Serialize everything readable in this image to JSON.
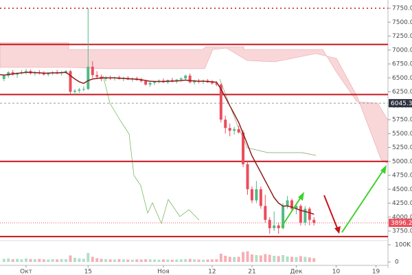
{
  "chart_data": {
    "type": "candlestick",
    "categories": [
      null,
      null,
      null,
      null,
      null,
      null,
      "Окт",
      null,
      null,
      null,
      null,
      null,
      null,
      null,
      null,
      null,
      null,
      null,
      null,
      null,
      "15",
      null,
      null,
      null,
      null,
      null,
      null,
      null,
      null,
      null,
      null,
      null,
      null,
      null,
      null,
      null,
      null,
      "Ноя",
      null,
      null,
      null,
      null,
      null,
      null,
      null,
      null,
      null,
      null,
      "12",
      null,
      null,
      null,
      null,
      null,
      null,
      null,
      null,
      "21",
      null,
      null,
      null,
      null,
      null,
      null,
      null,
      null,
      null,
      "Дек",
      null,
      null,
      null,
      null,
      null,
      null,
      null,
      null,
      "10",
      null,
      null,
      null,
      null,
      null,
      null,
      null,
      null,
      "19",
      null,
      null,
      null
    ],
    "ohlc": [
      [
        6580,
        6620,
        6450,
        6480
      ],
      [
        6480,
        6560,
        6440,
        6540
      ],
      [
        6540,
        6620,
        6500,
        6600
      ],
      [
        6600,
        6640,
        6540,
        6560
      ],
      [
        6560,
        6600,
        6500,
        6590
      ],
      [
        6590,
        6640,
        6560,
        6600
      ],
      [
        6600,
        6660,
        6560,
        6620
      ],
      [
        6620,
        6650,
        6560,
        6580
      ],
      [
        6580,
        6620,
        6540,
        6600
      ],
      [
        6600,
        6640,
        6560,
        6590
      ],
      [
        6590,
        6620,
        6540,
        6560
      ],
      [
        6560,
        6600,
        6530,
        6580
      ],
      [
        6580,
        6620,
        6550,
        6600
      ],
      [
        6600,
        6640,
        6560,
        6580
      ],
      [
        6580,
        6620,
        6540,
        6600
      ],
      [
        6600,
        6640,
        6570,
        6620
      ],
      [
        6620,
        6640,
        6200,
        6250
      ],
      [
        6250,
        6300,
        6200,
        6270
      ],
      [
        6270,
        6320,
        6230,
        6290
      ],
      [
        6290,
        6350,
        6260,
        6300
      ],
      [
        6300,
        7750,
        6280,
        6700
      ],
      [
        6700,
        6800,
        6500,
        6550
      ],
      [
        6550,
        6620,
        6480,
        6520
      ],
      [
        6520,
        6560,
        6440,
        6480
      ],
      [
        6480,
        6530,
        6440,
        6500
      ],
      [
        6500,
        6540,
        6460,
        6490
      ],
      [
        6490,
        6520,
        6450,
        6510
      ],
      [
        6510,
        6540,
        6470,
        6480
      ],
      [
        6480,
        6520,
        6440,
        6500
      ],
      [
        6500,
        6530,
        6460,
        6470
      ],
      [
        6470,
        6510,
        6430,
        6490
      ],
      [
        6490,
        6520,
        6450,
        6460
      ],
      [
        6460,
        6500,
        6420,
        6440
      ],
      [
        6440,
        6470,
        6360,
        6380
      ],
      [
        6380,
        6430,
        6340,
        6410
      ],
      [
        6410,
        6450,
        6370,
        6430
      ],
      [
        6430,
        6470,
        6400,
        6450
      ],
      [
        6450,
        6490,
        6410,
        6420
      ],
      [
        6420,
        6470,
        6390,
        6460
      ],
      [
        6460,
        6500,
        6420,
        6440
      ],
      [
        6440,
        6480,
        6400,
        6470
      ],
      [
        6470,
        6510,
        6430,
        6490
      ],
      [
        6490,
        6560,
        6460,
        6540
      ],
      [
        6540,
        6580,
        6400,
        6420
      ],
      [
        6420,
        6470,
        6380,
        6440
      ],
      [
        6440,
        6480,
        6400,
        6430
      ],
      [
        6430,
        6470,
        6390,
        6450
      ],
      [
        6450,
        6480,
        6410,
        6420
      ],
      [
        6420,
        6460,
        6380,
        6400
      ],
      [
        6400,
        6440,
        6350,
        6380
      ],
      [
        6380,
        6400,
        5700,
        5750
      ],
      [
        5750,
        5820,
        5500,
        5600
      ],
      [
        5600,
        5680,
        5450,
        5550
      ],
      [
        5550,
        5620,
        5480,
        5580
      ],
      [
        5580,
        5640,
        5500,
        5520
      ],
      [
        5520,
        5560,
        4900,
        4950
      ],
      [
        4950,
        5000,
        4400,
        4500
      ],
      [
        4500,
        4550,
        4250,
        4300
      ],
      [
        4300,
        4650,
        4250,
        4500
      ],
      [
        4500,
        4550,
        4150,
        4200
      ],
      [
        4200,
        4400,
        3900,
        3950
      ],
      [
        3950,
        4000,
        3700,
        3800
      ],
      [
        3800,
        4100,
        3750,
        3850
      ],
      [
        3850,
        3900,
        3700,
        3800
      ],
      [
        3800,
        4250,
        3780,
        4200
      ],
      [
        4200,
        4380,
        4150,
        4300
      ],
      [
        4300,
        4330,
        4100,
        4150
      ],
      [
        4150,
        4250,
        4050,
        4200
      ],
      [
        4200,
        4230,
        3850,
        3900
      ],
      [
        3900,
        4200,
        3850,
        4150
      ],
      [
        4150,
        4180,
        3850,
        3950
      ],
      [
        3950,
        4000,
        3850,
        3896.2
      ],
      null,
      null,
      null,
      null,
      null,
      null,
      null,
      null,
      null,
      null,
      null,
      null,
      null,
      null,
      null,
      null,
      null
    ],
    "ma": [
      6560,
      6550,
      6560,
      6570,
      6580,
      6590,
      6600,
      6600,
      6595,
      6590,
      6585,
      6585,
      6590,
      6590,
      6595,
      6600,
      6540,
      6480,
      6430,
      6400,
      6450,
      6480,
      6490,
      6500,
      6500,
      6500,
      6500,
      6495,
      6490,
      6485,
      6480,
      6475,
      6470,
      6450,
      6440,
      6435,
      6435,
      6435,
      6440,
      6440,
      6445,
      6450,
      6460,
      6450,
      6445,
      6440,
      6440,
      6435,
      6430,
      6420,
      6300,
      6150,
      6000,
      5850,
      5700,
      5500,
      5300,
      5100,
      4950,
      4800,
      4650,
      4500,
      4350,
      4250,
      4200,
      4200,
      4180,
      4150,
      4120,
      4100,
      4080,
      4050,
      null,
      null,
      null,
      null,
      null,
      null,
      null,
      null,
      null,
      null,
      null,
      null,
      null,
      null,
      null,
      null,
      null
    ],
    "volume": [
      22000,
      18000,
      20000,
      16000,
      18000,
      15000,
      20000,
      17000,
      16000,
      18000,
      15000,
      14000,
      16000,
      15000,
      17000,
      16000,
      38000,
      24000,
      20000,
      18000,
      52000,
      30000,
      22000,
      18000,
      16000,
      15000,
      14000,
      16000,
      15000,
      14000,
      13000,
      15000,
      14000,
      16000,
      15000,
      14000,
      13000,
      15000,
      14000,
      13000,
      14000,
      15000,
      16000,
      18000,
      15000,
      14000,
      13000,
      14000,
      15000,
      16000,
      48000,
      36000,
      30000,
      28000,
      30000,
      58000,
      62000,
      44000,
      40000,
      38000,
      46000,
      42000,
      36000,
      34000,
      40000,
      32000,
      30000,
      28000,
      34000,
      30000,
      26000,
      22000,
      null,
      null,
      null,
      null,
      null,
      null,
      null,
      null,
      null,
      null,
      null,
      null,
      null,
      null,
      null,
      null,
      null
    ],
    "up_color": "#53b987",
    "down_color": "#eb4d5c",
    "ma_color": "#8e1b1b",
    "ylim": [
      3750,
      7750
    ],
    "yticks": [
      {
        "value": 7750,
        "label": "7750.00"
      },
      {
        "value": 7500,
        "label": "7500.00"
      },
      {
        "value": 7250,
        "label": "7250.00"
      },
      {
        "value": 7000,
        "label": "7000.00"
      },
      {
        "value": 6750,
        "label": "6750.00"
      },
      {
        "value": 6500,
        "label": "6500.00"
      },
      {
        "value": 6250,
        "label": "6250.00"
      },
      {
        "value": 6000,
        "label": "6000.00"
      },
      {
        "value": 5750,
        "label": "5750.00"
      },
      {
        "value": 5500,
        "label": "5500.00"
      },
      {
        "value": 5250,
        "label": "5250.00"
      },
      {
        "value": 5000,
        "label": "5000.00"
      },
      {
        "value": 4750,
        "label": "4750.00"
      },
      {
        "value": 4500,
        "label": "4500.00"
      },
      {
        "value": 4250,
        "label": "4250.00"
      },
      {
        "value": 4000,
        "label": "4000.00"
      },
      {
        "value": 3750,
        "label": "3750.00"
      }
    ],
    "volume_lim": [
      0,
      100000
    ],
    "volume_ticks": [
      {
        "value": 100000,
        "label": "100K"
      },
      0
    ],
    "levels": [
      7750,
      7100,
      6200,
      5000,
      3650
    ],
    "level_color": "#c3141c",
    "price_markers": [
      6045.3,
      3896.2
    ],
    "price_marker_colors": [
      "#2f3342",
      "#eb4d5c"
    ]
  }
}
